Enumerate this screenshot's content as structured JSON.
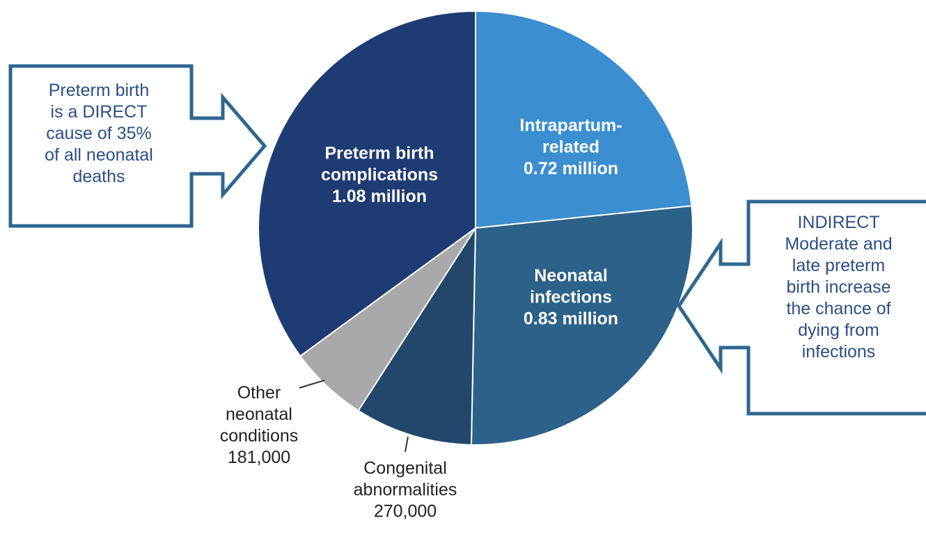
{
  "chart_data": {
    "type": "pie",
    "categories": [
      "Intrapartum-related",
      "Neonatal infections",
      "Congenital abnormalities",
      "Other neonatal conditions",
      "Preterm birth complications"
    ],
    "values": [
      720000,
      830000,
      270000,
      181000,
      1080000
    ],
    "value_labels": [
      "0.72 million",
      "0.83 million",
      "270,000",
      "181,000",
      "1.08 million"
    ],
    "colors": [
      "#3b8ed0",
      "#2c6189",
      "#23476a",
      "#a9a9a9",
      "#1f3b74"
    ],
    "annotations": [
      {
        "lines": [
          "Preterm birth",
          "is a DIRECT",
          "cause of 35%",
          "of all neonatal",
          "deaths"
        ]
      },
      {
        "lines": [
          "INDIRECT",
          "Moderate and",
          "late preterm",
          "birth increase",
          "the chance of",
          "dying from",
          "infections"
        ]
      }
    ]
  }
}
